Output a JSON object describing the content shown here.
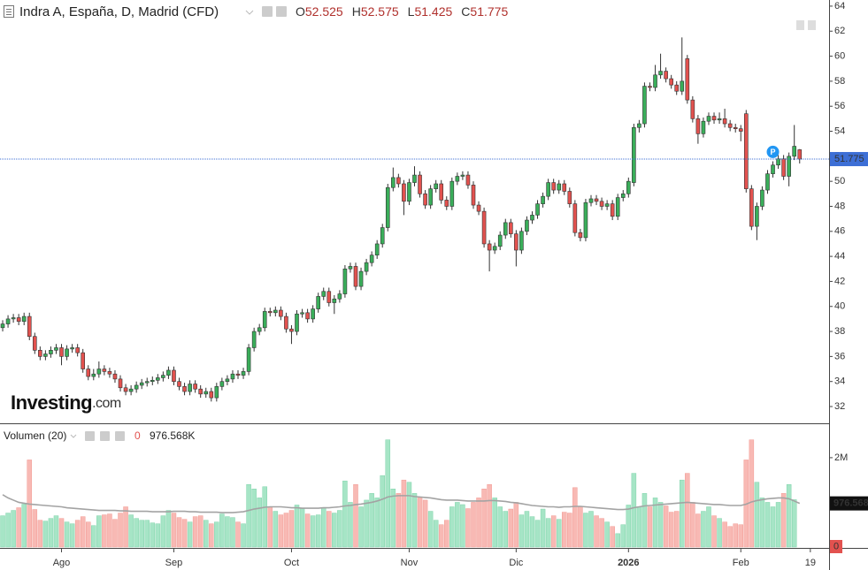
{
  "header": {
    "title": "Indra A, España, D, Madrid (CFD)",
    "ohlc_letters": [
      "O",
      "H",
      "L",
      "C"
    ],
    "watermark": "Investing",
    "watermark_suffix": ".com"
  },
  "chart_data": [
    {
      "type": "candlestick",
      "up_color": "#3aae5a",
      "down_color": "#e2524f",
      "last_price_color": "#3d6fd6",
      "ylim": [
        30.73,
        64.49
      ],
      "yticks": [
        32,
        34,
        36,
        38,
        40,
        42,
        44,
        46,
        48,
        50,
        52,
        54,
        56,
        58,
        60,
        62,
        64
      ],
      "xlim": [
        -0.5,
        154.5
      ],
      "xticks": [
        {
          "value": 11,
          "label": "Ago"
        },
        {
          "value": 32,
          "label": "Sep"
        },
        {
          "value": 54,
          "label": "Oct"
        },
        {
          "value": 76,
          "label": "Nov"
        },
        {
          "value": 96,
          "label": "Dic"
        },
        {
          "value": 117,
          "label": "2026"
        },
        {
          "value": 138,
          "label": "Feb"
        },
        {
          "value": 151,
          "label": "19"
        }
      ],
      "marker": {
        "label": "P",
        "index": 144,
        "price": 52.35
      },
      "open": [
        38.3,
        38.6,
        39.0,
        39.1,
        38.8,
        39.2,
        37.6,
        36.5,
        36.0,
        36.2,
        36.5,
        36.7,
        36.0,
        36.6,
        36.7,
        36.3,
        35.0,
        34.4,
        34.6,
        35.0,
        34.8,
        34.6,
        34.2,
        33.5,
        33.2,
        33.4,
        33.7,
        33.9,
        34.0,
        34.1,
        34.3,
        34.5,
        34.9,
        34.0,
        33.6,
        33.2,
        33.8,
        33.4,
        33.0,
        33.2,
        32.7,
        33.6,
        34.0,
        34.2,
        34.6,
        34.5,
        34.8,
        36.7,
        38.0,
        38.3,
        39.6,
        39.5,
        39.7,
        39.2,
        38.2,
        38.0,
        39.4,
        39.5,
        39.0,
        39.8,
        40.8,
        41.2,
        40.3,
        40.6,
        41.0,
        43.0,
        43.2,
        41.6,
        42.8,
        43.5,
        44.1,
        45.0,
        46.3,
        49.5,
        50.3,
        49.8,
        48.4,
        49.9,
        50.5,
        49.0,
        48.1,
        49.4,
        49.8,
        48.5,
        48.0,
        50.0,
        50.4,
        50.5,
        49.7,
        48.1,
        47.6,
        45.0,
        44.5,
        44.8,
        45.7,
        46.7,
        45.8,
        44.5,
        46.0,
        46.9,
        47.3,
        48.2,
        48.8,
        49.9,
        49.3,
        49.8,
        49.2,
        48.2,
        45.9,
        45.5,
        48.3,
        48.6,
        48.4,
        48.0,
        48.2,
        47.2,
        48.7,
        49.0,
        49.9,
        54.3,
        54.6,
        57.6,
        57.5,
        58.5,
        58.8,
        58.2,
        57.7,
        57.2,
        59.8,
        56.5,
        55.0,
        53.8,
        54.8,
        55.2,
        54.9,
        55.0,
        54.6,
        54.3,
        54.2,
        55.4,
        49.4,
        46.4,
        48.0,
        49.3,
        50.6,
        51.3,
        51.8,
        50.4,
        52.0,
        52.525
      ],
      "high": [
        38.9,
        39.3,
        39.4,
        39.4,
        39.5,
        39.5,
        37.9,
        36.8,
        36.5,
        36.8,
        37.0,
        37.0,
        36.9,
        37.0,
        37.0,
        36.6,
        35.3,
        35.0,
        35.6,
        35.3,
        35.1,
        34.9,
        34.5,
        33.8,
        33.7,
        34.0,
        34.2,
        34.3,
        34.4,
        34.6,
        34.8,
        35.2,
        35.2,
        34.3,
        33.9,
        34.1,
        34.1,
        33.7,
        33.5,
        33.5,
        33.9,
        34.3,
        34.5,
        34.9,
        34.9,
        35.1,
        37.0,
        38.3,
        38.6,
        39.9,
        39.9,
        40.0,
        40.0,
        39.5,
        38.5,
        39.7,
        39.8,
        39.8,
        40.1,
        41.1,
        41.5,
        41.5,
        40.9,
        41.3,
        43.3,
        43.5,
        43.5,
        43.1,
        43.8,
        44.4,
        45.3,
        46.6,
        49.8,
        51.1,
        50.6,
        50.1,
        50.2,
        51.2,
        50.8,
        49.3,
        49.7,
        50.1,
        50.1,
        48.8,
        50.3,
        50.7,
        50.8,
        50.8,
        50.0,
        48.4,
        47.9,
        45.3,
        45.1,
        46.0,
        47.0,
        47.0,
        46.1,
        46.3,
        47.2,
        47.6,
        48.5,
        49.1,
        50.2,
        50.2,
        50.1,
        50.1,
        49.5,
        48.5,
        46.2,
        48.6,
        48.9,
        48.9,
        48.7,
        48.5,
        48.5,
        49.0,
        49.3,
        50.3,
        54.6,
        54.9,
        57.9,
        57.9,
        59.3,
        60.2,
        59.1,
        58.5,
        58.0,
        61.5,
        60.1,
        56.8,
        55.3,
        55.1,
        55.5,
        55.5,
        55.5,
        55.8,
        54.9,
        54.6,
        54.5,
        55.7,
        49.7,
        48.3,
        49.6,
        50.9,
        51.6,
        52.1,
        52.1,
        52.3,
        54.5,
        52.575
      ],
      "low": [
        38.0,
        38.3,
        38.7,
        38.5,
        38.5,
        37.3,
        36.2,
        35.7,
        35.7,
        35.9,
        36.2,
        35.3,
        35.7,
        36.3,
        36.0,
        34.7,
        34.1,
        34.1,
        34.3,
        34.5,
        34.3,
        33.9,
        33.2,
        32.9,
        32.9,
        33.1,
        33.4,
        33.6,
        33.7,
        33.8,
        34.0,
        34.2,
        33.7,
        33.3,
        32.9,
        32.9,
        33.1,
        32.7,
        32.7,
        32.4,
        32.4,
        33.3,
        33.7,
        33.9,
        34.2,
        34.2,
        34.5,
        36.4,
        37.7,
        38.0,
        39.2,
        39.2,
        38.9,
        37.9,
        37.0,
        37.7,
        39.1,
        38.7,
        38.7,
        39.5,
        40.5,
        40.0,
        39.4,
        40.3,
        40.7,
        42.7,
        41.3,
        41.3,
        42.5,
        43.2,
        43.8,
        44.7,
        46.0,
        49.2,
        49.5,
        47.3,
        48.1,
        49.6,
        48.7,
        47.8,
        47.8,
        49.1,
        48.2,
        47.7,
        47.7,
        49.7,
        50.1,
        49.4,
        47.8,
        47.3,
        44.7,
        42.8,
        44.2,
        44.5,
        45.4,
        45.5,
        43.2,
        44.2,
        45.7,
        46.6,
        47.0,
        47.9,
        48.5,
        49.0,
        49.0,
        48.9,
        47.9,
        45.6,
        45.2,
        45.2,
        48.0,
        48.1,
        47.7,
        47.7,
        46.9,
        46.9,
        48.4,
        48.7,
        49.6,
        53.9,
        54.3,
        57.2,
        57.2,
        58.2,
        57.9,
        57.4,
        56.9,
        56.9,
        56.2,
        54.7,
        53.0,
        53.5,
        54.5,
        54.6,
        54.6,
        54.3,
        54.0,
        53.9,
        53.2,
        49.1,
        46.1,
        45.3,
        47.7,
        49.0,
        50.3,
        51.0,
        50.1,
        49.6,
        51.7,
        51.425
      ],
      "close": [
        38.6,
        39.0,
        39.1,
        38.8,
        39.2,
        37.6,
        36.5,
        36.0,
        36.2,
        36.5,
        36.7,
        36.0,
        36.6,
        36.7,
        36.3,
        35.0,
        34.4,
        34.6,
        35.0,
        34.8,
        34.6,
        34.2,
        33.5,
        33.2,
        33.4,
        33.7,
        33.9,
        34.0,
        34.1,
        34.3,
        34.5,
        34.9,
        34.0,
        33.6,
        33.2,
        33.8,
        33.4,
        33.0,
        33.2,
        32.7,
        33.6,
        34.0,
        34.2,
        34.6,
        34.5,
        34.8,
        36.7,
        38.0,
        38.3,
        39.6,
        39.5,
        39.7,
        39.2,
        38.2,
        38.0,
        39.4,
        39.5,
        39.0,
        39.8,
        40.8,
        41.2,
        40.3,
        40.6,
        41.0,
        43.0,
        43.2,
        41.6,
        42.8,
        43.5,
        44.1,
        45.0,
        46.3,
        49.5,
        50.3,
        49.8,
        48.4,
        49.9,
        50.5,
        49.0,
        48.1,
        49.4,
        49.8,
        48.5,
        48.0,
        50.0,
        50.4,
        50.5,
        49.7,
        48.1,
        47.6,
        45.0,
        44.5,
        44.8,
        45.7,
        46.7,
        45.8,
        44.5,
        46.0,
        46.9,
        47.3,
        48.2,
        48.8,
        49.9,
        49.3,
        49.8,
        49.2,
        48.2,
        45.9,
        45.5,
        48.3,
        48.6,
        48.4,
        48.0,
        48.2,
        47.2,
        48.7,
        49.0,
        50.0,
        54.3,
        54.6,
        57.6,
        57.5,
        58.5,
        58.8,
        58.2,
        57.7,
        57.2,
        58.0,
        56.5,
        55.0,
        53.8,
        54.8,
        55.2,
        54.9,
        55.0,
        54.6,
        54.3,
        54.2,
        54.0,
        49.4,
        46.4,
        48.0,
        49.3,
        50.6,
        51.3,
        51.8,
        50.4,
        52.0,
        52.8,
        51.775
      ]
    },
    {
      "type": "volume",
      "title": "Volumen (20)",
      "up_color": "#a6e5c6",
      "down_color": "#f8b9b4",
      "ylim": [
        0,
        2750000
      ],
      "yticks": [
        {
          "value": 2000000,
          "label": "2M"
        }
      ],
      "values": [
        700000,
        760000,
        820000,
        880000,
        960000,
        1950000,
        840000,
        600000,
        580000,
        640000,
        700000,
        640000,
        560000,
        520000,
        600000,
        680000,
        560000,
        480000,
        700000,
        720000,
        740000,
        620000,
        760000,
        900000,
        720000,
        640000,
        600000,
        600000,
        540000,
        520000,
        700000,
        820000,
        760000,
        660000,
        620000,
        560000,
        680000,
        700000,
        600000,
        520000,
        560000,
        740000,
        680000,
        660000,
        560000,
        520000,
        1400000,
        1300000,
        1100000,
        1350000,
        900000,
        800000,
        720000,
        760000,
        820000,
        940000,
        860000,
        740000,
        700000,
        720000,
        880000,
        800000,
        760000,
        820000,
        1480000,
        1000000,
        1400000,
        900000,
        1050000,
        1200000,
        1100000,
        1600000,
        2400000,
        1300000,
        1200000,
        1500000,
        1450000,
        1200000,
        1100000,
        1050000,
        800000,
        600000,
        500000,
        600000,
        900000,
        1000000,
        950000,
        860000,
        1000000,
        1100000,
        1300000,
        1400000,
        1100000,
        900000,
        800000,
        850000,
        1000000,
        720000,
        800000,
        680000,
        600000,
        850000,
        640000,
        700000,
        620000,
        780000,
        760000,
        1330000,
        900000,
        760000,
        800000,
        700000,
        640000,
        560000,
        460000,
        300000,
        500000,
        940000,
        1650000,
        900000,
        1200000,
        900000,
        1100000,
        1000000,
        920000,
        780000,
        800000,
        1500000,
        1650000,
        1000000,
        740000,
        800000,
        900000,
        700000,
        640000,
        560000,
        460000,
        520000,
        500000,
        1950000,
        2400000,
        1450000,
        1100000,
        1000000,
        900000,
        1000000,
        1200000,
        1400000,
        1060000,
        0
      ],
      "ma": {
        "color": "#a3a3a3",
        "legend_label": "976.568K",
        "axis_label": "976.568",
        "values": [
          1170000,
          1100000,
          1050000,
          1000000,
          980000,
          960000,
          950000,
          940000,
          930000,
          920000,
          910000,
          900000,
          880000,
          870000,
          860000,
          850000,
          840000,
          830000,
          820000,
          820000,
          820000,
          820000,
          810000,
          810000,
          800000,
          800000,
          800000,
          800000,
          790000,
          790000,
          790000,
          790000,
          800000,
          800000,
          800000,
          790000,
          790000,
          780000,
          780000,
          780000,
          780000,
          770000,
          770000,
          770000,
          780000,
          790000,
          820000,
          850000,
          870000,
          890000,
          900000,
          900000,
          900000,
          890000,
          880000,
          880000,
          870000,
          870000,
          870000,
          870000,
          880000,
          880000,
          890000,
          900000,
          920000,
          930000,
          950000,
          960000,
          980000,
          1000000,
          1030000,
          1070000,
          1120000,
          1140000,
          1150000,
          1150000,
          1150000,
          1130000,
          1120000,
          1110000,
          1100000,
          1080000,
          1060000,
          1050000,
          1050000,
          1050000,
          1040000,
          1030000,
          1030000,
          1030000,
          1030000,
          1040000,
          1040000,
          1030000,
          1020000,
          1000000,
          990000,
          970000,
          950000,
          930000,
          920000,
          910000,
          900000,
          900000,
          890000,
          900000,
          900000,
          910000,
          910000,
          900000,
          890000,
          880000,
          870000,
          860000,
          850000,
          840000,
          840000,
          850000,
          880000,
          900000,
          920000,
          930000,
          940000,
          950000,
          960000,
          970000,
          980000,
          990000,
          1000000,
          990000,
          980000,
          970000,
          960000,
          950000,
          950000,
          940000,
          930000,
          930000,
          930000,
          960000,
          1010000,
          1040000,
          1060000,
          1080000,
          1090000,
          1100000,
          1100000,
          1080000,
          1030000,
          976568
        ]
      }
    }
  ]
}
